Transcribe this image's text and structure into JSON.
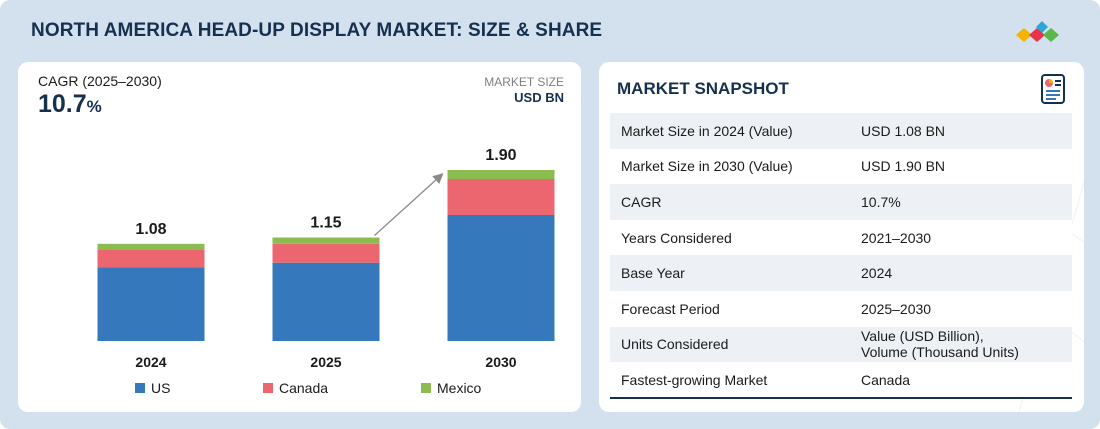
{
  "header": {
    "title": "NORTH AMERICA HEAD-UP DISPLAY MARKET: SIZE & SHARE"
  },
  "brand": {
    "logo": "company-logo-diamonds",
    "colors": [
      "#f4b400",
      "#e8334a",
      "#2fa6d8",
      "#59b846"
    ]
  },
  "left": {
    "cagr_label": "CAGR (2025–2030)",
    "cagr_value": "10.7",
    "cagr_pct": "%",
    "market_size_label": "MARKET SIZE",
    "market_size_unit": "USD BN"
  },
  "chart_data": {
    "type": "bar",
    "stacked": true,
    "title": "",
    "categories": [
      "2024",
      "2025",
      "2030"
    ],
    "totals": [
      1.08,
      1.15,
      1.9
    ],
    "total_labels": [
      "1.08",
      "1.15",
      "1.90"
    ],
    "series": [
      {
        "name": "US",
        "color": "#3578bb",
        "values": [
          0.82,
          0.87,
          1.4
        ]
      },
      {
        "name": "Canada",
        "color": "#ec6670",
        "values": [
          0.2,
          0.21,
          0.4
        ]
      },
      {
        "name": "Mexico",
        "color": "#8cbb4f",
        "values": [
          0.06,
          0.07,
          0.1
        ]
      }
    ],
    "legend_position": "bottom",
    "arrow": {
      "from": "2025",
      "to": "2030"
    }
  },
  "snapshot": {
    "title": "MARKET SNAPSHOT",
    "icon": "report-icon",
    "rows": [
      {
        "key": "Market Size in 2024 (Value)",
        "value": "USD 1.08 BN"
      },
      {
        "key": "Market Size in 2030 (Value)",
        "value": "USD 1.90 BN"
      },
      {
        "key": "CAGR",
        "value": "10.7%"
      },
      {
        "key": "Years Considered",
        "value": "2021–2030"
      },
      {
        "key": "Base Year",
        "value": "2024"
      },
      {
        "key": "Forecast Period",
        "value": "2025–2030"
      },
      {
        "key": "Units Considered",
        "value": "Value (USD Billion),",
        "value2": "Volume (Thousand Units)"
      },
      {
        "key": "Fastest-growing Market",
        "value": "Canada"
      }
    ]
  }
}
